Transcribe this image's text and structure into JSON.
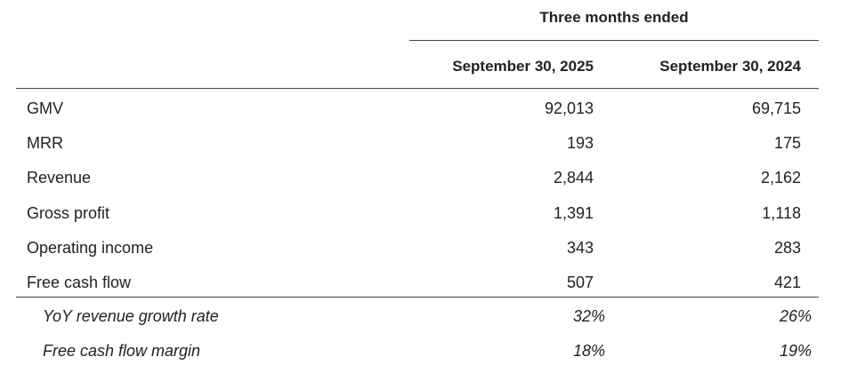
{
  "header": {
    "group": "Three months ended",
    "columns": [
      "September 30, 2025",
      "September 30, 2024"
    ]
  },
  "table": {
    "rows": [
      [
        "GMV",
        "92,013",
        "69,715"
      ],
      [
        "MRR",
        "193",
        "175"
      ],
      [
        "Revenue",
        "2,844",
        "2,162"
      ],
      [
        "Gross profit",
        "1,391",
        "1,118"
      ],
      [
        "Operating income",
        "343",
        "283"
      ],
      [
        "Free cash flow",
        "507",
        "421"
      ]
    ],
    "ratios": [
      [
        "YoY revenue growth rate",
        "32%",
        "26%"
      ],
      [
        "Free cash flow margin",
        "18%",
        "19%"
      ]
    ]
  }
}
